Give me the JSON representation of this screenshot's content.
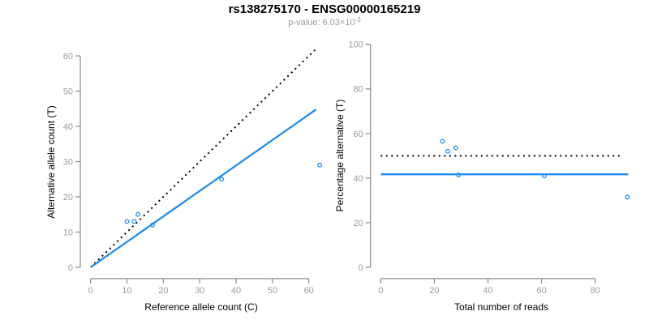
{
  "title": "rs138275170 - ENSG00000165219",
  "subtitle": {
    "base": "p-value: 6.03×10",
    "exponent": "-3"
  },
  "colors": {
    "accent_blue": "#1E8CF0",
    "dotted_black": "#000000",
    "axis_gray": "#8a8a8a",
    "tick_label_gray": "#9c9c9c",
    "title_black": "#000000",
    "subtitle_gray": "#9c9c9c",
    "background": "#ffffff"
  },
  "chart_data": [
    {
      "type": "scatter",
      "panel": "left",
      "xlabel": "Reference allele count (C)",
      "ylabel": "Alternative allele count (T)",
      "xlim": [
        0,
        60
      ],
      "ylim": [
        0,
        60
      ],
      "xticks": [
        0,
        10,
        20,
        30,
        40,
        50,
        60
      ],
      "yticks": [
        0,
        10,
        20,
        30,
        40,
        50,
        60
      ],
      "grid": false,
      "legend": null,
      "points": [
        [
          10,
          13
        ],
        [
          12,
          13
        ],
        [
          13,
          15
        ],
        [
          17,
          12
        ],
        [
          36,
          25
        ],
        [
          63,
          29
        ]
      ],
      "lines": [
        {
          "name": "identity-line",
          "style": "dotted",
          "color": "black",
          "from": [
            0,
            0
          ],
          "to": [
            62,
            62
          ]
        },
        {
          "name": "fit-line",
          "style": "solid",
          "color": "blue",
          "from": [
            0,
            0
          ],
          "to": [
            62,
            44.8
          ]
        }
      ]
    },
    {
      "type": "scatter",
      "panel": "right",
      "xlabel": "Total number of reads",
      "ylabel": "Percentage alternative (T)",
      "xlim": [
        0,
        92
      ],
      "ylim": [
        0,
        100
      ],
      "xticks": [
        0,
        20,
        40,
        60,
        80
      ],
      "yticks": [
        0,
        20,
        40,
        60,
        80,
        100
      ],
      "grid": false,
      "legend": null,
      "points": [
        [
          23,
          56.5
        ],
        [
          25,
          52
        ],
        [
          28,
          53.6
        ],
        [
          29,
          41.4
        ],
        [
          61,
          41
        ],
        [
          92,
          31.5
        ]
      ],
      "lines": [
        {
          "name": "fifty-percent-line",
          "style": "dotted",
          "color": "black",
          "from": [
            0,
            50
          ],
          "to": [
            90,
            50
          ]
        },
        {
          "name": "mean-line",
          "style": "solid",
          "color": "blue",
          "from": [
            0,
            41.7
          ],
          "to": [
            92.3,
            41.7
          ]
        }
      ]
    }
  ]
}
